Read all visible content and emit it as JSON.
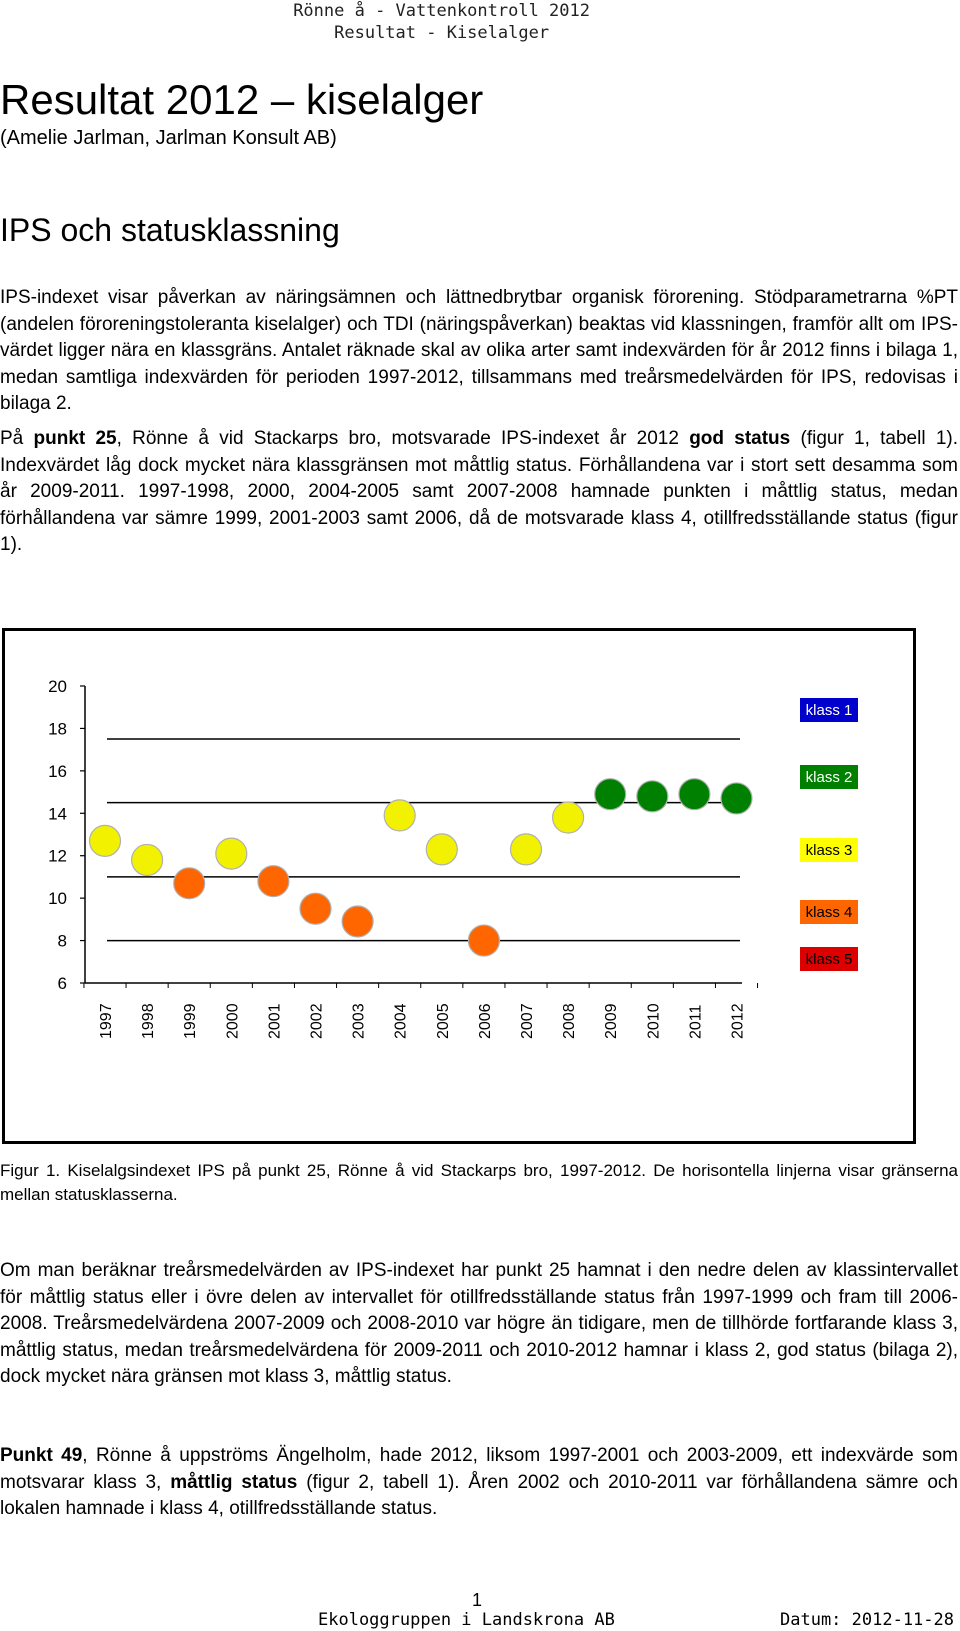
{
  "header": {
    "line1": "Rönne å - Vattenkontroll 2012",
    "line2": "Resultat - Kiselalger"
  },
  "title": "Resultat 2012 – kiselalger",
  "subtitle": "(Amelie Jarlman, Jarlman Konsult AB)",
  "section_heading": "IPS och statusklassning",
  "paragraph1": "IPS-indexet visar påverkan av näringsämnen och lättnedbrytbar organisk förorening. Stödparametrarna %PT (andelen föroreningstoleranta kiselalger) och TDI (näringspåverkan) beaktas vid klassningen, framför allt om IPS-värdet ligger nära en klassgräns. Antalet räknade skal av olika arter samt indexvärden för år 2012 finns i bilaga 1, medan samtliga indexvärden för perioden 1997-2012, tillsammans med treårsmedelvärden för IPS, redovisas i bilaga 2.",
  "paragraph2": {
    "t1": "På ",
    "b1": "punkt 25",
    "t2": ", Rönne å vid Stackarps bro, motsvarade IPS-indexet år 2012 ",
    "b2": "god status",
    "t3": " (figur 1, tabell 1). Indexvärdet låg dock mycket nära klassgränsen mot måttlig status. Förhållandena var i stort sett desamma som år 2009-2011. 1997-1998, 2000, 2004-2005 samt 2007-2008 hamnade punkten i måttlig status, medan förhållandena var sämre 1999, 2001-2003 samt 2006, då de motsvarade klass 4, otillfredsställande status (figur 1)."
  },
  "chart_data": {
    "type": "scatter",
    "x": [
      "1997",
      "1998",
      "1999",
      "2000",
      "2001",
      "2002",
      "2003",
      "2004",
      "2005",
      "2006",
      "2007",
      "2008",
      "2009",
      "2010",
      "2011",
      "2012"
    ],
    "values": [
      12.7,
      11.8,
      10.7,
      12.1,
      10.8,
      9.5,
      8.9,
      13.9,
      12.3,
      8.0,
      12.3,
      13.8,
      14.9,
      14.8,
      14.9,
      14.7
    ],
    "point_class": [
      3,
      3,
      4,
      3,
      4,
      4,
      4,
      3,
      3,
      4,
      3,
      3,
      2,
      2,
      2,
      2
    ],
    "yticks": [
      6,
      8,
      10,
      12,
      14,
      16,
      18,
      20
    ],
    "ylim": [
      6,
      20
    ],
    "class_boundaries": [
      17.5,
      14.5,
      11.0,
      8.0
    ],
    "legend": [
      {
        "label": "klass 1",
        "bg": "#0000CC",
        "fg": "#FFFFFF"
      },
      {
        "label": "klass 2",
        "bg": "#008000",
        "fg": "#FFFFFF"
      },
      {
        "label": "klass 3",
        "bg": "#FFFF00",
        "fg": "#000000"
      },
      {
        "label": "klass 4",
        "bg": "#FF6600",
        "fg": "#000000"
      },
      {
        "label": "klass 5",
        "bg": "#DD0000",
        "fg": "#000000"
      }
    ],
    "class_colors": {
      "2": "#008000",
      "3": "#F2F200",
      "4": "#FF6600"
    },
    "legend_placement": "right"
  },
  "caption": "Figur 1. Kiselalgsindexet IPS på punkt 25, Rönne å vid Stackarps bro, 1997-2012. De horisontella linjerna visar gränserna mellan statusklasserna.",
  "paragraph3": "Om man beräknar treårsmedelvärden av IPS-indexet har punkt 25 hamnat i den nedre delen av klassintervallet för måttlig status eller i övre delen av intervallet för otillfredsställande status från 1997-1999 och fram till 2006-2008. Treårsmedelvärdena 2007-2009 och 2008-2010 var högre än tidigare, men de tillhörde fortfarande klass 3, måttlig status, medan treårsmedelvärdena för 2009-2011 och 2010-2012 hamnar i klass 2, god status (bilaga 2), dock mycket nära gränsen mot klass 3, måttlig status.",
  "paragraph4": {
    "b1": "Punkt 49",
    "t1": ", Rönne å uppströms Ängelholm, hade 2012, liksom 1997-2001 och 2003-2009, ett indexvärde som motsvarar klass 3, ",
    "b2": "måttlig status",
    "t2": " (figur 2, tabell 1). Åren 2002 och 2010-2011 var förhållandena sämre och lokalen hamnade i klass 4, otillfredsställande status."
  },
  "footer": {
    "page_number": "1",
    "organization": "Ekologgruppen i Landskrona AB",
    "date": "Datum: 2012-11-28"
  }
}
